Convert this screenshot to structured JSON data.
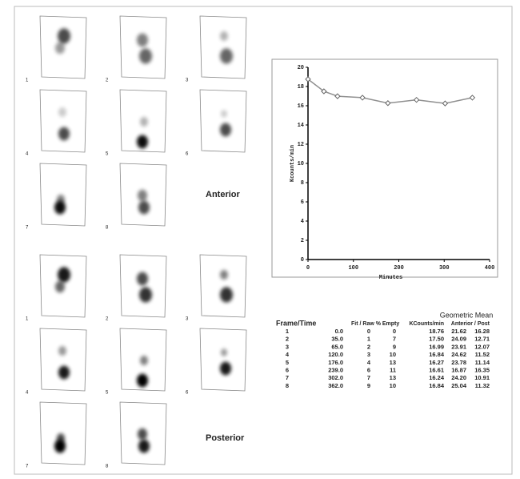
{
  "chart_data": {
    "type": "line",
    "x_label": "Minutes",
    "y_label": "Kcounts/min",
    "x": [
      0,
      35,
      65,
      120,
      176,
      239,
      302,
      362
    ],
    "values": [
      18.76,
      17.5,
      16.99,
      16.84,
      16.27,
      16.61,
      16.24,
      16.84
    ],
    "color": "#909090",
    "xlim": [
      0,
      400
    ],
    "xticks": [
      0,
      100,
      200,
      300,
      400
    ],
    "ylim": [
      0,
      20
    ],
    "yticks": [
      0,
      2,
      4,
      6,
      8,
      10,
      12,
      14,
      16,
      18,
      20
    ]
  },
  "anterior": {
    "label": "Anterior",
    "frames": [
      1,
      2,
      3,
      4,
      5,
      6,
      7,
      8
    ]
  },
  "posterior": {
    "label": "Posterior",
    "frames": [
      1,
      2,
      3,
      4,
      5,
      6,
      7,
      8
    ]
  },
  "table": {
    "group_header": "Geometric Mean",
    "headers": [
      "Frame/Time",
      "Fit / Raw % Empty",
      "KCounts/min",
      "Anterior / Post"
    ],
    "rows": [
      [
        "1",
        "0.0",
        "0",
        "0",
        "18.76",
        "21.62",
        "16.28"
      ],
      [
        "2",
        "35.0",
        "1",
        "7",
        "17.50",
        "24.09",
        "12.71"
      ],
      [
        "3",
        "65.0",
        "2",
        "9",
        "16.99",
        "23.91",
        "12.07"
      ],
      [
        "4",
        "120.0",
        "3",
        "10",
        "16.84",
        "24.62",
        "11.52"
      ],
      [
        "5",
        "176.0",
        "4",
        "13",
        "16.27",
        "23.78",
        "11.14"
      ],
      [
        "6",
        "239.0",
        "6",
        "11",
        "16.61",
        "16.87",
        "16.35"
      ],
      [
        "7",
        "302.0",
        "7",
        "13",
        "16.24",
        "24.20",
        "10.91"
      ],
      [
        "8",
        "362.0",
        "9",
        "10",
        "16.84",
        "25.04",
        "11.32"
      ]
    ]
  }
}
